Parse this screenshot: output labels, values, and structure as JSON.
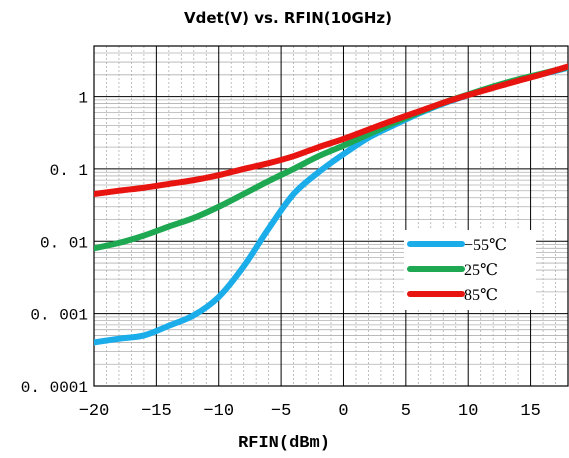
{
  "chart_data": {
    "type": "line",
    "title": "Vdet(V) vs. RFIN(10GHz)",
    "xlabel": "RFIN(dBm)",
    "ylabel": "",
    "xlim": [
      -20,
      18
    ],
    "ylim": [
      0.0001,
      5
    ],
    "yscale": "log",
    "grid": true,
    "legend_position": "right",
    "x_ticks": [
      -20,
      -15,
      -10,
      -5,
      0,
      5,
      10,
      15
    ],
    "x_tick_labels": [
      "−20",
      "−15",
      "−10",
      "−5",
      "0",
      "5",
      "10",
      "15"
    ],
    "y_ticks": [
      0.0001,
      0.001,
      0.01,
      0.1,
      1
    ],
    "y_tick_labels": [
      "0. 0001",
      "0. 001",
      "0. 01",
      "0. 1",
      "1"
    ],
    "x": [
      -20,
      -18,
      -16,
      -14,
      -12,
      -10,
      -8,
      -6,
      -4,
      -2,
      0,
      2,
      4,
      6,
      8,
      10,
      12,
      14,
      16,
      18
    ],
    "series": [
      {
        "name": "−55℃",
        "color": "#1AADEA",
        "values": [
          0.0004,
          0.00045,
          0.0005,
          0.00068,
          0.00095,
          0.0017,
          0.0045,
          0.015,
          0.045,
          0.09,
          0.16,
          0.27,
          0.4,
          0.58,
          0.8,
          1.05,
          1.35,
          1.7,
          2.05,
          2.5
        ]
      },
      {
        "name": "25℃",
        "color": "#1DA851",
        "values": [
          0.008,
          0.0095,
          0.012,
          0.016,
          0.021,
          0.03,
          0.045,
          0.068,
          0.1,
          0.15,
          0.21,
          0.3,
          0.43,
          0.6,
          0.82,
          1.07,
          1.38,
          1.73,
          2.1,
          2.55
        ]
      },
      {
        "name": "85℃",
        "color": "#E8140F",
        "values": [
          0.045,
          0.05,
          0.055,
          0.062,
          0.07,
          0.082,
          0.1,
          0.12,
          0.15,
          0.2,
          0.26,
          0.35,
          0.47,
          0.62,
          0.82,
          1.05,
          1.32,
          1.65,
          2.05,
          2.6
        ]
      }
    ]
  }
}
